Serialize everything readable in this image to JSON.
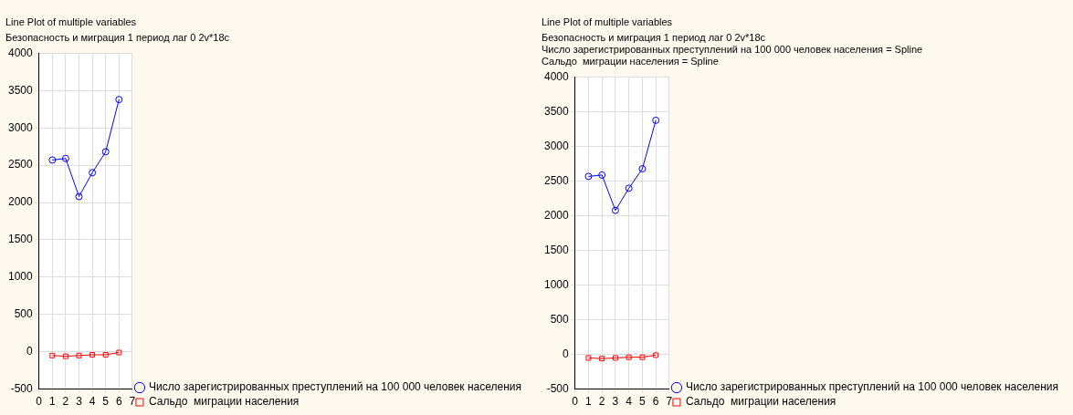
{
  "chart_data": [
    {
      "type": "line",
      "title": "Line Plot of multiple variables",
      "subtitle": "Безопасность и миграция 1 период лаг 0 2v*18c",
      "x": [
        1,
        2,
        3,
        4,
        5,
        6
      ],
      "xlim": [
        0,
        7
      ],
      "xticks": [
        0,
        1,
        2,
        3,
        4,
        5,
        6,
        7
      ],
      "ylim": [
        -500,
        4000
      ],
      "yticks": [
        -500,
        0,
        500,
        1000,
        1500,
        2000,
        2500,
        3000,
        3500,
        4000
      ],
      "grid": true,
      "legend": "bottom right",
      "series": [
        {
          "name": "Число зарегистрированных преступлений на 100 000 человек населения",
          "color": "#0000ff",
          "marker": "circle",
          "values": [
            2570,
            2590,
            2080,
            2400,
            2680,
            3380
          ]
        },
        {
          "name": "Сальдо  миграции населения",
          "color": "#ff0000",
          "marker": "square",
          "values": [
            -50,
            -60,
            -50,
            -40,
            -40,
            -10
          ]
        }
      ]
    },
    {
      "type": "line",
      "title": "Line Plot of multiple variables",
      "subtitle": "Безопасность и миграция 1 период лаг 0 2v*18c",
      "annotations": [
        "Число зарегистрированных преступлений на 100 000 человек населения = Spline",
        "Сальдо  миграции населения = Spline"
      ],
      "x": [
        1,
        2,
        3,
        4,
        5,
        6
      ],
      "xlim": [
        0,
        7
      ],
      "xticks": [
        0,
        1,
        2,
        3,
        4,
        5,
        6,
        7
      ],
      "ylim": [
        -500,
        4000
      ],
      "yticks": [
        -500,
        0,
        500,
        1000,
        1500,
        2000,
        2500,
        3000,
        3500,
        4000
      ],
      "grid": true,
      "legend": "bottom right",
      "series": [
        {
          "name": "Число зарегистрированных преступлений на 100 000 человек населения",
          "color": "#0000ff",
          "marker": "circle",
          "values": [
            2570,
            2590,
            2080,
            2400,
            2680,
            3380
          ]
        },
        {
          "name": "Сальдо  миграции населения",
          "color": "#ff0000",
          "marker": "square",
          "values": [
            -50,
            -60,
            -50,
            -40,
            -40,
            -10
          ]
        }
      ]
    }
  ]
}
